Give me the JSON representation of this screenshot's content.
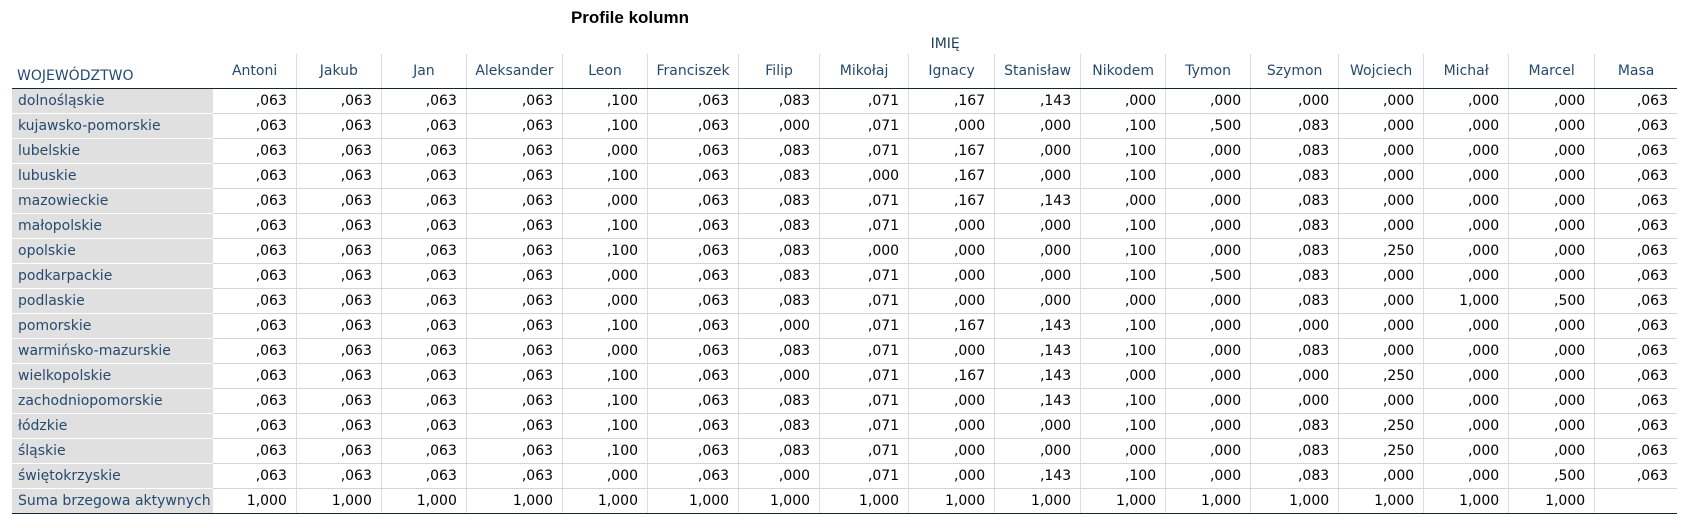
{
  "title": "Profile kolumn",
  "column_group_label": "IMIĘ",
  "row_header": "WOJEWÓDZTWO",
  "columns": [
    "Antoni",
    "Jakub",
    "Jan",
    "Aleksander",
    "Leon",
    "Franciszek",
    "Filip",
    "Mikołaj",
    "Ignacy",
    "Stanisław",
    "Nikodem",
    "Tymon",
    "Szymon",
    "Wojciech",
    "Michał",
    "Marcel",
    "Masa"
  ],
  "rows": [
    {
      "label": "dolnośląskie",
      "values": [
        ",063",
        ",063",
        ",063",
        ",063",
        ",100",
        ",063",
        ",083",
        ",071",
        ",167",
        ",143",
        ",000",
        ",000",
        ",000",
        ",000",
        ",000",
        ",000",
        ",063"
      ]
    },
    {
      "label": "kujawsko-pomorskie",
      "values": [
        ",063",
        ",063",
        ",063",
        ",063",
        ",100",
        ",063",
        ",000",
        ",071",
        ",000",
        ",000",
        ",100",
        ",500",
        ",083",
        ",000",
        ",000",
        ",000",
        ",063"
      ]
    },
    {
      "label": "lubelskie",
      "values": [
        ",063",
        ",063",
        ",063",
        ",063",
        ",000",
        ",063",
        ",083",
        ",071",
        ",167",
        ",000",
        ",100",
        ",000",
        ",083",
        ",000",
        ",000",
        ",000",
        ",063"
      ]
    },
    {
      "label": "lubuskie",
      "values": [
        ",063",
        ",063",
        ",063",
        ",063",
        ",100",
        ",063",
        ",083",
        ",000",
        ",167",
        ",000",
        ",100",
        ",000",
        ",083",
        ",000",
        ",000",
        ",000",
        ",063"
      ]
    },
    {
      "label": "mazowieckie",
      "values": [
        ",063",
        ",063",
        ",063",
        ",063",
        ",000",
        ",063",
        ",083",
        ",071",
        ",167",
        ",143",
        ",000",
        ",000",
        ",083",
        ",000",
        ",000",
        ",000",
        ",063"
      ]
    },
    {
      "label": "małopolskie",
      "values": [
        ",063",
        ",063",
        ",063",
        ",063",
        ",100",
        ",063",
        ",083",
        ",071",
        ",000",
        ",000",
        ",100",
        ",000",
        ",083",
        ",000",
        ",000",
        ",000",
        ",063"
      ]
    },
    {
      "label": "opolskie",
      "values": [
        ",063",
        ",063",
        ",063",
        ",063",
        ",100",
        ",063",
        ",083",
        ",000",
        ",000",
        ",000",
        ",100",
        ",000",
        ",083",
        ",250",
        ",000",
        ",000",
        ",063"
      ]
    },
    {
      "label": "podkarpackie",
      "values": [
        ",063",
        ",063",
        ",063",
        ",063",
        ",000",
        ",063",
        ",083",
        ",071",
        ",000",
        ",000",
        ",100",
        ",500",
        ",083",
        ",000",
        ",000",
        ",000",
        ",063"
      ]
    },
    {
      "label": "podlaskie",
      "values": [
        ",063",
        ",063",
        ",063",
        ",063",
        ",000",
        ",063",
        ",083",
        ",071",
        ",000",
        ",000",
        ",000",
        ",000",
        ",083",
        ",000",
        "1,000",
        ",500",
        ",063"
      ]
    },
    {
      "label": "pomorskie",
      "values": [
        ",063",
        ",063",
        ",063",
        ",063",
        ",100",
        ",063",
        ",000",
        ",071",
        ",167",
        ",143",
        ",100",
        ",000",
        ",000",
        ",000",
        ",000",
        ",000",
        ",063"
      ]
    },
    {
      "label": "warmińsko-mazurskie",
      "values": [
        ",063",
        ",063",
        ",063",
        ",063",
        ",000",
        ",063",
        ",083",
        ",071",
        ",000",
        ",143",
        ",100",
        ",000",
        ",083",
        ",000",
        ",000",
        ",000",
        ",063"
      ]
    },
    {
      "label": "wielkopolskie",
      "values": [
        ",063",
        ",063",
        ",063",
        ",063",
        ",100",
        ",063",
        ",000",
        ",071",
        ",167",
        ",143",
        ",000",
        ",000",
        ",000",
        ",250",
        ",000",
        ",000",
        ",063"
      ]
    },
    {
      "label": "zachodniopomorskie",
      "values": [
        ",063",
        ",063",
        ",063",
        ",063",
        ",100",
        ",063",
        ",083",
        ",071",
        ",000",
        ",143",
        ",100",
        ",000",
        ",000",
        ",000",
        ",000",
        ",000",
        ",063"
      ]
    },
    {
      "label": "łódzkie",
      "values": [
        ",063",
        ",063",
        ",063",
        ",063",
        ",100",
        ",063",
        ",083",
        ",071",
        ",000",
        ",000",
        ",100",
        ",000",
        ",083",
        ",250",
        ",000",
        ",000",
        ",063"
      ]
    },
    {
      "label": "śląskie",
      "values": [
        ",063",
        ",063",
        ",063",
        ",063",
        ",100",
        ",063",
        ",083",
        ",071",
        ",000",
        ",000",
        ",000",
        ",000",
        ",083",
        ",250",
        ",000",
        ",000",
        ",063"
      ]
    },
    {
      "label": "świętokrzyskie",
      "values": [
        ",063",
        ",063",
        ",063",
        ",063",
        ",000",
        ",063",
        ",000",
        ",071",
        ",000",
        ",143",
        ",100",
        ",000",
        ",083",
        ",000",
        ",000",
        ",500",
        ",063"
      ]
    }
  ],
  "total_row": {
    "label": "Suma brzegowa aktywnych",
    "values": [
      "1,000",
      "1,000",
      "1,000",
      "1,000",
      "1,000",
      "1,000",
      "1,000",
      "1,000",
      "1,000",
      "1,000",
      "1,000",
      "1,000",
      "1,000",
      "1,000",
      "1,000",
      "1,000",
      ""
    ]
  }
}
